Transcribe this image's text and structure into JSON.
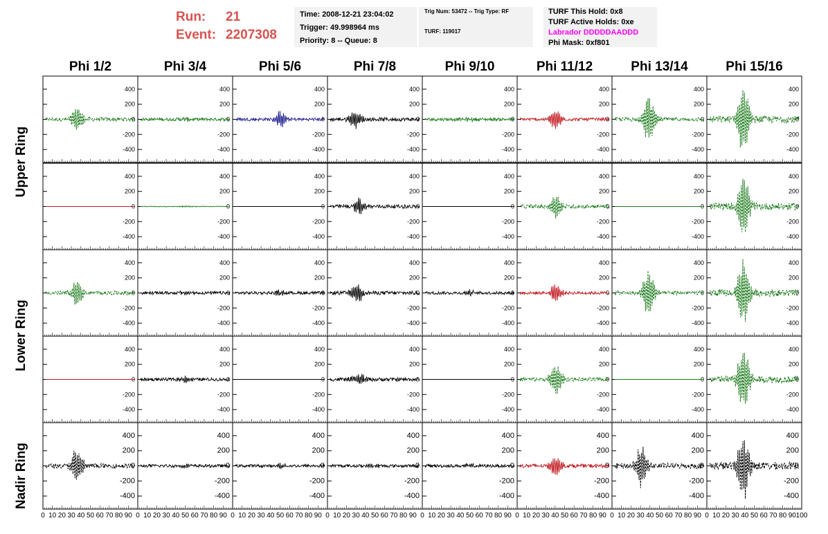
{
  "header": {
    "run_label": "Run:",
    "run_value": "21",
    "event_label": "Event:",
    "event_value": "2207308"
  },
  "info_box_1": {
    "time": "Time: 2008-12-21 23:04:02",
    "trigger": "Trigger: 49.998964 ms",
    "priority": "Priority: 8 -- Queue: 8"
  },
  "info_box_2": {
    "trig": "Trig Num: 53472 -- Trig Type: RF",
    "turf": "TURF: 119017"
  },
  "info_box_3": {
    "hold": "TURF This Hold: 0x8",
    "active": "TURF Active Holds: 0xe",
    "labrador": "Labrador DDDDDAADDD",
    "phimask": "Phi Mask: 0xf801"
  },
  "columns": [
    "Phi 1/2",
    "Phi 3/4",
    "Phi 5/6",
    "Phi 7/8",
    "Phi 9/10",
    "Phi 11/12",
    "Phi 13/14",
    "Phi 15/16"
  ],
  "rings": [
    "Upper Ring",
    "Lower Ring",
    "Nadir Ring"
  ],
  "axis": {
    "y_ticks": [
      "400",
      "200",
      "0",
      "-200",
      "-400"
    ],
    "x_ticks": [
      "0",
      "10",
      "20",
      "30",
      "40",
      "50",
      "60",
      "70",
      "80",
      "90",
      "100"
    ],
    "ylim": [
      -500,
      500
    ],
    "xlim": [
      0,
      100
    ]
  },
  "colors": {
    "green": "#1a7a1a",
    "red": "#c0141b",
    "blue": "#1a1a8c",
    "black": "#000000",
    "run_red": "#d9534f",
    "magenta": "#ff00ff",
    "box_bg": "#f2f2f2"
  },
  "panels": [
    [
      {
        "c": "green",
        "a": 180,
        "p": 35,
        "n": 25,
        "s": "dash"
      },
      {
        "c": "green",
        "a": 20,
        "p": 50,
        "n": 20,
        "s": "solid"
      },
      {
        "c": "blue",
        "a": 110,
        "p": 50,
        "n": 20,
        "s": "solid"
      },
      {
        "c": "black",
        "a": 120,
        "p": 28,
        "n": 25,
        "s": "solid"
      },
      {
        "c": "green",
        "a": 20,
        "p": 50,
        "n": 20,
        "s": "solid"
      },
      {
        "c": "red",
        "a": 140,
        "p": 40,
        "n": 20,
        "s": "solid"
      },
      {
        "c": "green",
        "a": 330,
        "p": 38,
        "n": 25,
        "s": "dash"
      },
      {
        "c": "green",
        "a": 470,
        "p": 38,
        "n": 45,
        "s": "dash"
      }
    ],
    [
      {
        "c": "red",
        "a": 0,
        "p": 50,
        "n": 0,
        "s": "solid"
      },
      {
        "c": "green",
        "a": 10,
        "p": 50,
        "n": 5,
        "s": "solid"
      },
      {
        "c": "black",
        "a": 0,
        "p": 50,
        "n": 0,
        "s": "solid"
      },
      {
        "c": "black",
        "a": 110,
        "p": 32,
        "n": 25,
        "s": "solid"
      },
      {
        "c": "black",
        "a": 0,
        "p": 50,
        "n": 0,
        "s": "solid"
      },
      {
        "c": "green",
        "a": 170,
        "p": 40,
        "n": 25,
        "s": "dash"
      },
      {
        "c": "green",
        "a": 0,
        "p": 50,
        "n": 0,
        "s": "solid"
      },
      {
        "c": "green",
        "a": 420,
        "p": 38,
        "n": 45,
        "s": "dash"
      }
    ],
    [
      {
        "c": "green",
        "a": 180,
        "p": 35,
        "n": 25,
        "s": "dash"
      },
      {
        "c": "black",
        "a": 25,
        "p": 50,
        "n": 20,
        "s": "solid"
      },
      {
        "c": "black",
        "a": 30,
        "p": 50,
        "n": 20,
        "s": "solid"
      },
      {
        "c": "black",
        "a": 130,
        "p": 30,
        "n": 25,
        "s": "solid"
      },
      {
        "c": "black",
        "a": 30,
        "p": 50,
        "n": 20,
        "s": "solid"
      },
      {
        "c": "red",
        "a": 130,
        "p": 40,
        "n": 20,
        "s": "solid"
      },
      {
        "c": "green",
        "a": 330,
        "p": 38,
        "n": 25,
        "s": "dash"
      },
      {
        "c": "green",
        "a": 450,
        "p": 38,
        "n": 45,
        "s": "dash"
      }
    ],
    [
      {
        "c": "red",
        "a": 0,
        "p": 50,
        "n": 0,
        "s": "solid"
      },
      {
        "c": "black",
        "a": 40,
        "p": 50,
        "n": 20,
        "s": "solid"
      },
      {
        "c": "black",
        "a": 0,
        "p": 50,
        "n": 0,
        "s": "solid"
      },
      {
        "c": "black",
        "a": 90,
        "p": 32,
        "n": 25,
        "s": "solid"
      },
      {
        "c": "black",
        "a": 0,
        "p": 50,
        "n": 0,
        "s": "solid"
      },
      {
        "c": "green",
        "a": 230,
        "p": 40,
        "n": 25,
        "s": "dash"
      },
      {
        "c": "green",
        "a": 0,
        "p": 50,
        "n": 0,
        "s": "solid"
      },
      {
        "c": "green",
        "a": 450,
        "p": 38,
        "n": 45,
        "s": "dash"
      }
    ],
    [
      {
        "c": "black",
        "a": 230,
        "p": 35,
        "n": 30,
        "s": "dash"
      },
      {
        "c": "black",
        "a": 25,
        "p": 50,
        "n": 20,
        "s": "solid"
      },
      {
        "c": "black",
        "a": 30,
        "p": 50,
        "n": 20,
        "s": "solid"
      },
      {
        "c": "black",
        "a": 25,
        "p": 50,
        "n": 20,
        "s": "solid"
      },
      {
        "c": "black",
        "a": 25,
        "p": 50,
        "n": 20,
        "s": "solid"
      },
      {
        "c": "red",
        "a": 150,
        "p": 40,
        "n": 25,
        "s": "solid"
      },
      {
        "c": "black",
        "a": 280,
        "p": 30,
        "n": 35,
        "s": "dash"
      },
      {
        "c": "black",
        "a": 470,
        "p": 38,
        "n": 50,
        "s": "dash"
      }
    ]
  ]
}
